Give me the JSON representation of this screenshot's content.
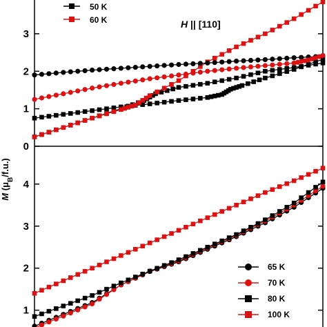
{
  "chart_data": [
    {
      "type": "line",
      "panel": "top",
      "annotation_field": "H",
      "annotation_rest": " || [110]",
      "ylim": [
        0,
        3.9
      ],
      "yticks": [
        "0",
        "1",
        "2",
        "3"
      ],
      "legend_position": "top-left",
      "series": [
        {
          "name": "50 K",
          "color": "#000000",
          "marker": "square",
          "points": [
            [
              0,
              0.75
            ],
            [
              0.1,
              0.85
            ],
            [
              0.2,
              0.95
            ],
            [
              0.3,
              1.05
            ],
            [
              0.4,
              1.13
            ],
            [
              0.5,
              1.22
            ],
            [
              0.6,
              1.3
            ],
            [
              0.65,
              1.38
            ],
            [
              0.68,
              1.52
            ],
            [
              0.72,
              1.62
            ],
            [
              0.8,
              1.82
            ],
            [
              0.9,
              2.05
            ],
            [
              1,
              2.32
            ]
          ],
          "points2": [
            [
              0,
              0.25
            ],
            [
              0.1,
              0.5
            ],
            [
              0.2,
              0.75
            ],
            [
              0.3,
              1.0
            ],
            [
              0.38,
              1.22
            ],
            [
              0.42,
              1.4
            ],
            [
              0.5,
              1.57
            ],
            [
              0.6,
              1.68
            ],
            [
              0.7,
              1.82
            ],
            [
              0.8,
              2.0
            ],
            [
              0.9,
              2.1
            ],
            [
              1,
              2.22
            ]
          ]
        },
        {
          "name": "60 K",
          "color": "#dd1111",
          "marker": "square",
          "points": [
            [
              0,
              0.25
            ],
            [
              0.1,
              0.5
            ],
            [
              0.2,
              0.75
            ],
            [
              0.3,
              0.98
            ],
            [
              0.35,
              1.1
            ],
            [
              0.4,
              1.35
            ],
            [
              0.5,
              1.75
            ],
            [
              0.6,
              2.25
            ],
            [
              0.7,
              2.65
            ],
            [
              0.8,
              3.0
            ],
            [
              0.9,
              3.4
            ],
            [
              1,
              3.85
            ]
          ]
        },
        {
          "name": "65 K",
          "color": "#000000",
          "marker": "circle",
          "points": [
            [
              0,
              1.9
            ],
            [
              0.1,
              1.97
            ],
            [
              0.2,
              2.03
            ],
            [
              0.3,
              2.08
            ],
            [
              0.4,
              2.13
            ],
            [
              0.5,
              2.18
            ],
            [
              0.6,
              2.22
            ],
            [
              0.7,
              2.27
            ],
            [
              0.8,
              2.31
            ],
            [
              0.9,
              2.36
            ],
            [
              1,
              2.4
            ]
          ]
        },
        {
          "name": "70 K",
          "color": "#dd1111",
          "marker": "circle",
          "points": [
            [
              0,
              1.25
            ],
            [
              0.1,
              1.4
            ],
            [
              0.2,
              1.55
            ],
            [
              0.3,
              1.68
            ],
            [
              0.4,
              1.8
            ],
            [
              0.5,
              1.9
            ],
            [
              0.6,
              2.0
            ],
            [
              0.7,
              2.08
            ],
            [
              0.8,
              2.15
            ],
            [
              0.9,
              2.22
            ],
            [
              0.95,
              2.3
            ],
            [
              1,
              2.42
            ]
          ]
        }
      ]
    },
    {
      "type": "line",
      "panel": "bottom",
      "ylim": [
        0.6,
        4.9
      ],
      "yticks": [
        "1",
        "2",
        "3",
        "4"
      ],
      "ylabel_prefix": "M",
      "ylabel_open": " (μ",
      "ylabel_sub": "B",
      "ylabel_close": "/f.u.)",
      "legend_position": "bottom-right",
      "legend": [
        {
          "name": "65 K",
          "color": "#000000",
          "marker": "circle"
        },
        {
          "name": "70 K",
          "color": "#dd1111",
          "marker": "circle"
        },
        {
          "name": "80 K",
          "color": "#000000",
          "marker": "square"
        },
        {
          "name": "100 K",
          "color": "#dd1111",
          "marker": "square"
        }
      ],
      "series": [
        {
          "name": "65 K",
          "color": "#000000",
          "marker": "circle",
          "points": [
            [
              0,
              0.62
            ],
            [
              0.1,
              0.9
            ],
            [
              0.2,
              1.18
            ],
            [
              0.3,
              1.6
            ],
            [
              0.4,
              1.92
            ],
            [
              0.5,
              2.15
            ],
            [
              0.6,
              2.45
            ],
            [
              0.7,
              2.75
            ],
            [
              0.8,
              3.08
            ],
            [
              0.9,
              3.45
            ],
            [
              1,
              3.9
            ]
          ]
        },
        {
          "name": "70 K",
          "color": "#dd1111",
          "marker": "circle",
          "points": [
            [
              0,
              0.58
            ],
            [
              0.1,
              0.86
            ],
            [
              0.2,
              1.15
            ],
            [
              0.3,
              1.6
            ],
            [
              0.4,
              1.93
            ],
            [
              0.5,
              2.17
            ],
            [
              0.6,
              2.48
            ],
            [
              0.7,
              2.78
            ],
            [
              0.8,
              3.12
            ],
            [
              0.9,
              3.5
            ],
            [
              1,
              3.95
            ]
          ]
        },
        {
          "name": "80 K",
          "color": "#000000",
          "marker": "square",
          "points": [
            [
              0,
              0.85
            ],
            [
              0.1,
              1.1
            ],
            [
              0.2,
              1.35
            ],
            [
              0.3,
              1.65
            ],
            [
              0.4,
              1.93
            ],
            [
              0.5,
              2.2
            ],
            [
              0.6,
              2.5
            ],
            [
              0.7,
              2.8
            ],
            [
              0.8,
              3.15
            ],
            [
              0.9,
              3.55
            ],
            [
              1,
              4.05
            ]
          ]
        },
        {
          "name": "100 K",
          "color": "#dd1111",
          "marker": "square",
          "points": [
            [
              0,
              1.4
            ],
            [
              0.1,
              1.7
            ],
            [
              0.2,
              2.0
            ],
            [
              0.3,
              2.3
            ],
            [
              0.4,
              2.6
            ],
            [
              0.5,
              2.9
            ],
            [
              0.6,
              3.2
            ],
            [
              0.7,
              3.5
            ],
            [
              0.8,
              3.8
            ],
            [
              0.9,
              4.08
            ],
            [
              1,
              4.38
            ]
          ]
        }
      ]
    }
  ]
}
